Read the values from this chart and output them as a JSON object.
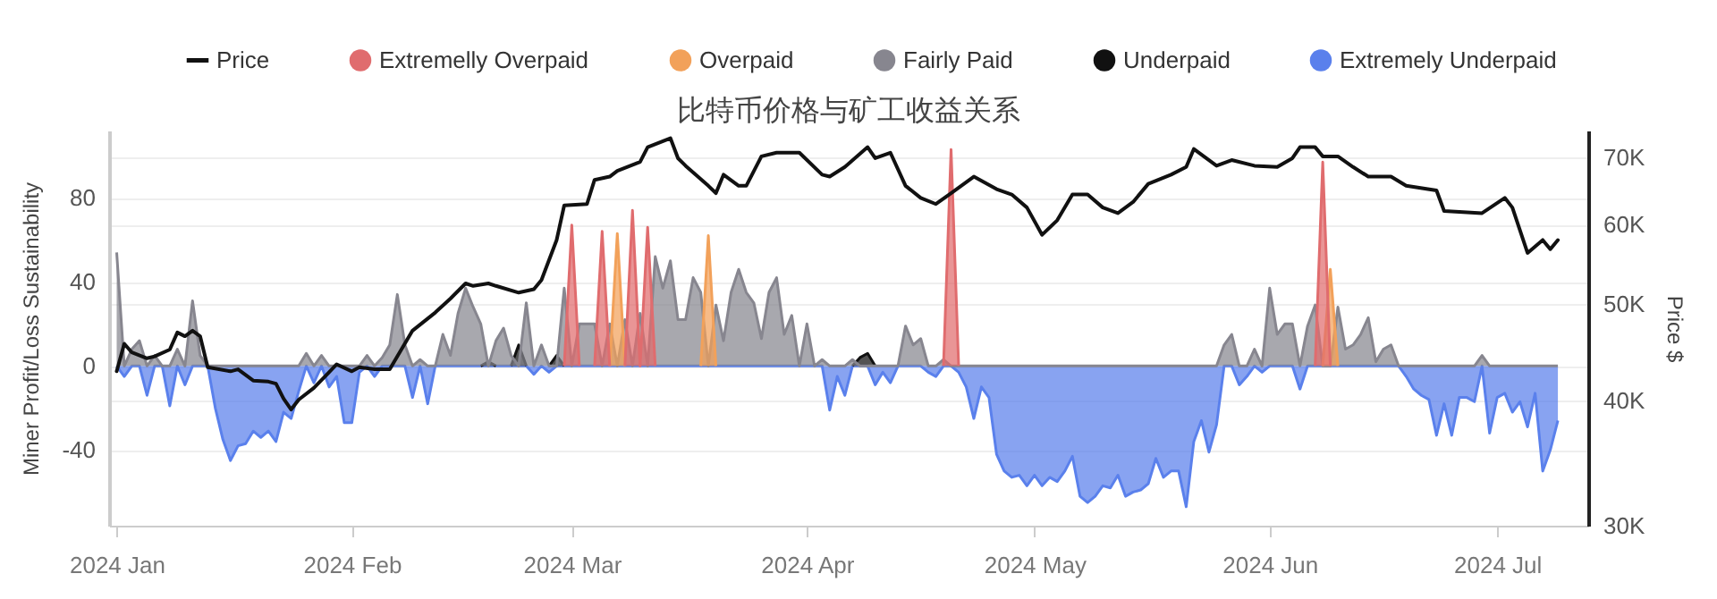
{
  "chart_data": {
    "type": "area",
    "title": "比特币价格与矿工收益关系",
    "ylabel": "Miner Profit/Loss Sustainability",
    "y2label": "Price $",
    "xlim": [
      "2023-12-31",
      "2024-07-13"
    ],
    "xticks": [
      {
        "value": "2024-01-01",
        "label": "2024 Jan"
      },
      {
        "value": "2024-02-01",
        "label": "2024 Feb"
      },
      {
        "value": "2024-03-01",
        "label": "2024 Mar"
      },
      {
        "value": "2024-04-01",
        "label": "2024 Apr"
      },
      {
        "value": "2024-05-01",
        "label": "2024 May"
      },
      {
        "value": "2024-06-01",
        "label": "2024 Jun"
      },
      {
        "value": "2024-07-01",
        "label": "2024 Jul"
      }
    ],
    "ylim": [
      -76,
      112
    ],
    "yticks": [
      -40,
      0,
      40,
      80
    ],
    "y2lim": [
      30000,
      74500
    ],
    "y2ticks": [
      {
        "value": 30000,
        "label": "30K"
      },
      {
        "value": 40000,
        "label": "40K"
      },
      {
        "value": 50000,
        "label": "50K"
      },
      {
        "value": 60000,
        "label": "60K"
      },
      {
        "value": 70000,
        "label": "70K"
      }
    ],
    "log": "y2",
    "grid": "y",
    "legend": "top",
    "x": [
      "2024-01-01",
      "2024-01-02",
      "2024-01-03",
      "2024-01-04",
      "2024-01-05",
      "2024-01-06",
      "2024-01-07",
      "2024-01-08",
      "2024-01-09",
      "2024-01-10",
      "2024-01-11",
      "2024-01-12",
      "2024-01-13",
      "2024-01-14",
      "2024-01-15",
      "2024-01-16",
      "2024-01-17",
      "2024-01-18",
      "2024-01-19",
      "2024-01-20",
      "2024-01-21",
      "2024-01-22",
      "2024-01-23",
      "2024-01-24",
      "2024-01-25",
      "2024-01-26",
      "2024-01-27",
      "2024-01-28",
      "2024-01-29",
      "2024-01-30",
      "2024-01-31",
      "2024-02-01",
      "2024-02-02",
      "2024-02-03",
      "2024-02-04",
      "2024-02-05",
      "2024-02-06",
      "2024-02-07",
      "2024-02-08",
      "2024-02-09",
      "2024-02-10",
      "2024-02-11",
      "2024-02-12",
      "2024-02-13",
      "2024-02-14",
      "2024-02-15",
      "2024-02-16",
      "2024-02-17",
      "2024-02-18",
      "2024-02-19",
      "2024-02-20",
      "2024-02-21",
      "2024-02-22",
      "2024-02-23",
      "2024-02-24",
      "2024-02-25",
      "2024-02-26",
      "2024-02-27",
      "2024-02-28",
      "2024-02-29",
      "2024-03-01",
      "2024-03-02",
      "2024-03-03",
      "2024-03-04",
      "2024-03-05",
      "2024-03-06",
      "2024-03-07",
      "2024-03-08",
      "2024-03-09",
      "2024-03-10",
      "2024-03-11",
      "2024-03-12",
      "2024-03-13",
      "2024-03-14",
      "2024-03-15",
      "2024-03-16",
      "2024-03-17",
      "2024-03-18",
      "2024-03-19",
      "2024-03-20",
      "2024-03-21",
      "2024-03-22",
      "2024-03-23",
      "2024-03-24",
      "2024-03-25",
      "2024-03-26",
      "2024-03-27",
      "2024-03-28",
      "2024-03-29",
      "2024-03-30",
      "2024-03-31",
      "2024-04-01",
      "2024-04-02",
      "2024-04-03",
      "2024-04-04",
      "2024-04-05",
      "2024-04-06",
      "2024-04-07",
      "2024-04-08",
      "2024-04-09",
      "2024-04-10",
      "2024-04-11",
      "2024-04-12",
      "2024-04-13",
      "2024-04-14",
      "2024-04-15",
      "2024-04-16",
      "2024-04-17",
      "2024-04-18",
      "2024-04-19",
      "2024-04-20",
      "2024-04-21",
      "2024-04-22",
      "2024-04-23",
      "2024-04-24",
      "2024-04-25",
      "2024-04-26",
      "2024-04-27",
      "2024-04-28",
      "2024-04-29",
      "2024-04-30",
      "2024-05-01",
      "2024-05-02",
      "2024-05-03",
      "2024-05-04",
      "2024-05-05",
      "2024-05-06",
      "2024-05-07",
      "2024-05-08",
      "2024-05-09",
      "2024-05-10",
      "2024-05-11",
      "2024-05-12",
      "2024-05-13",
      "2024-05-14",
      "2024-05-15",
      "2024-05-16",
      "2024-05-17",
      "2024-05-18",
      "2024-05-19",
      "2024-05-20",
      "2024-05-21",
      "2024-05-22",
      "2024-05-23",
      "2024-05-24",
      "2024-05-25",
      "2024-05-26",
      "2024-05-27",
      "2024-05-28",
      "2024-05-29",
      "2024-05-30",
      "2024-05-31",
      "2024-06-01",
      "2024-06-02",
      "2024-06-03",
      "2024-06-04",
      "2024-06-05",
      "2024-06-06",
      "2024-06-07",
      "2024-06-08",
      "2024-06-09",
      "2024-06-10",
      "2024-06-11",
      "2024-06-12",
      "2024-06-13",
      "2024-06-14",
      "2024-06-15",
      "2024-06-16",
      "2024-06-17",
      "2024-06-18",
      "2024-06-19",
      "2024-06-20",
      "2024-06-21",
      "2024-06-22",
      "2024-06-23",
      "2024-06-24",
      "2024-06-25",
      "2024-06-26",
      "2024-06-27",
      "2024-06-28",
      "2024-06-29",
      "2024-06-30",
      "2024-07-01",
      "2024-07-02",
      "2024-07-03",
      "2024-07-04",
      "2024-07-05",
      "2024-07-06",
      "2024-07-07",
      "2024-07-08",
      "2024-07-09"
    ],
    "series": [
      {
        "name": "Price",
        "type": "line",
        "axis": "y2",
        "color": "#111111",
        "x": [
          "2024-01-01",
          "2024-01-02",
          "2024-01-03",
          "2024-01-05",
          "2024-01-06",
          "2024-01-08",
          "2024-01-09",
          "2024-01-10",
          "2024-01-11",
          "2024-01-12",
          "2024-01-13",
          "2024-01-16",
          "2024-01-17",
          "2024-01-19",
          "2024-01-21",
          "2024-01-22",
          "2024-01-23",
          "2024-01-24",
          "2024-01-25",
          "2024-01-27",
          "2024-01-29",
          "2024-01-30",
          "2024-02-01",
          "2024-02-02",
          "2024-02-04",
          "2024-02-06",
          "2024-02-09",
          "2024-02-12",
          "2024-02-14",
          "2024-02-16",
          "2024-02-17",
          "2024-02-19",
          "2024-02-20",
          "2024-02-23",
          "2024-02-25",
          "2024-02-26",
          "2024-02-28",
          "2024-02-29",
          "2024-03-03",
          "2024-03-04",
          "2024-03-06",
          "2024-03-07",
          "2024-03-10",
          "2024-03-11",
          "2024-03-14",
          "2024-03-15",
          "2024-03-16",
          "2024-03-19",
          "2024-03-20",
          "2024-03-21",
          "2024-03-23",
          "2024-03-24",
          "2024-03-26",
          "2024-03-28",
          "2024-03-31",
          "2024-04-03",
          "2024-04-04",
          "2024-04-06",
          "2024-04-09",
          "2024-04-10",
          "2024-04-12",
          "2024-04-14",
          "2024-04-16",
          "2024-04-18",
          "2024-04-20",
          "2024-04-23",
          "2024-04-26",
          "2024-04-28",
          "2024-04-30",
          "2024-05-02",
          "2024-05-04",
          "2024-05-06",
          "2024-05-08",
          "2024-05-10",
          "2024-05-12",
          "2024-05-14",
          "2024-05-16",
          "2024-05-19",
          "2024-05-21",
          "2024-05-22",
          "2024-05-25",
          "2024-05-27",
          "2024-05-30",
          "2024-06-02",
          "2024-06-04",
          "2024-06-05",
          "2024-06-07",
          "2024-06-08",
          "2024-06-10",
          "2024-06-12",
          "2024-06-14",
          "2024-06-17",
          "2024-06-19",
          "2024-06-23",
          "2024-06-24",
          "2024-06-29",
          "2024-07-02",
          "2024-07-03",
          "2024-07-05",
          "2024-07-07",
          "2024-07-08",
          "2024-07-09"
        ],
        "values": [
          42800,
          45600,
          44700,
          44100,
          44300,
          45000,
          46800,
          46400,
          47000,
          46400,
          43200,
          42800,
          43000,
          41900,
          41800,
          41600,
          40200,
          39200,
          40100,
          41200,
          42700,
          43500,
          42800,
          43200,
          43000,
          43000,
          47000,
          49000,
          50600,
          52400,
          52100,
          52400,
          52100,
          51300,
          51700,
          52800,
          57900,
          62700,
          62900,
          66500,
          67000,
          67900,
          69300,
          71700,
          73200,
          69900,
          68700,
          65600,
          64500,
          67300,
          65600,
          65600,
          70200,
          70800,
          70800,
          67300,
          67000,
          68500,
          71700,
          69900,
          70800,
          65600,
          63800,
          62900,
          64500,
          67000,
          65100,
          64300,
          62400,
          58600,
          60600,
          64300,
          64300,
          62400,
          61600,
          63200,
          65900,
          67300,
          68500,
          71400,
          68700,
          69600,
          68700,
          68500,
          69900,
          71700,
          71700,
          70200,
          70200,
          68500,
          67000,
          67000,
          65600,
          64900,
          61900,
          61600,
          63800,
          62400,
          56200,
          57900,
          56700,
          57900
        ]
      },
      {
        "name": "Extremelly Overpaid",
        "color": "#e06c6e",
        "x": [
          "2024-02-29",
          "2024-03-01",
          "2024-03-02",
          "2024-03-03",
          "2024-03-04",
          "2024-03-05",
          "2024-03-06",
          "2024-03-07",
          "2024-03-08",
          "2024-03-09",
          "2024-03-10",
          "2024-03-11",
          "2024-03-12",
          "2024-04-01",
          "2024-04-19",
          "2024-04-20",
          "2024-04-21",
          "2024-05-01",
          "2024-06-07",
          "2024-06-08",
          "2024-06-09"
        ],
        "values": [
          0,
          67,
          0,
          null,
          0,
          64,
          0,
          null,
          0,
          74,
          0,
          66,
          0,
          null,
          0,
          103,
          0,
          null,
          0,
          97,
          0
        ]
      },
      {
        "name": "Overpaid",
        "color": "#f2a15a",
        "x": [
          "2024-03-06",
          "2024-03-07",
          "2024-03-08",
          "2024-03-09",
          "2024-03-18",
          "2024-03-19",
          "2024-03-20",
          "2024-04-01",
          "2024-06-08",
          "2024-06-09",
          "2024-06-10"
        ],
        "values": [
          0,
          63,
          0,
          null,
          0,
          62,
          0,
          null,
          0,
          46,
          0
        ]
      },
      {
        "name": "Fairly Paid",
        "color": "#87868f",
        "values": [
          54,
          0,
          8,
          12,
          0,
          5,
          0,
          0,
          8,
          0,
          31,
          5,
          0,
          0,
          0,
          0,
          0,
          0,
          0,
          0,
          0,
          0,
          0,
          0,
          0,
          6,
          0,
          5,
          0,
          0,
          0,
          0,
          0,
          5,
          0,
          4,
          10,
          34,
          10,
          0,
          3,
          0,
          0,
          15,
          5,
          25,
          37,
          28,
          20,
          0,
          12,
          18,
          5,
          0,
          30,
          0,
          10,
          0,
          0,
          37,
          0,
          20,
          20,
          20,
          0,
          20,
          0,
          22,
          0,
          25,
          0,
          52,
          37,
          50,
          22,
          22,
          42,
          35,
          0,
          29,
          12,
          35,
          46,
          35,
          30,
          13,
          35,
          42,
          15,
          24,
          0,
          20,
          0,
          3,
          0,
          0,
          0,
          3,
          0,
          0,
          0,
          0,
          0,
          0,
          19,
          10,
          13,
          0,
          0,
          3,
          0,
          0,
          0,
          0,
          0,
          0,
          0,
          0,
          0,
          0,
          0,
          0,
          0,
          0,
          0,
          0,
          0,
          0,
          0,
          0,
          0,
          0,
          0,
          0,
          0,
          0,
          0,
          0,
          0,
          0,
          0,
          0,
          0,
          0,
          0,
          0,
          10,
          15,
          0,
          0,
          8,
          0,
          37,
          15,
          20,
          20,
          0,
          19,
          29,
          0,
          0,
          28,
          8,
          10,
          15,
          23,
          2,
          8,
          10,
          0,
          0,
          0,
          0,
          0,
          0,
          0,
          0,
          0,
          0,
          0,
          5,
          0,
          0,
          0,
          0,
          0,
          0,
          0,
          0,
          0,
          0
        ]
      },
      {
        "name": "Underpaid",
        "color": "#111111",
        "x": [
          "2024-02-18",
          "2024-02-19",
          "2024-02-20",
          "2024-02-21",
          "2024-02-22",
          "2024-02-23",
          "2024-02-24",
          "2024-02-25",
          "2024-02-27",
          "2024-02-28",
          "2024-02-29",
          "2024-03-15",
          "2024-04-07",
          "2024-04-08",
          "2024-04-09",
          "2024-04-10"
        ],
        "values": [
          0,
          2,
          0,
          null,
          0,
          10,
          0,
          null,
          0,
          5,
          0,
          null,
          0,
          4,
          6,
          0
        ]
      },
      {
        "name": "Extremely Underpaid",
        "color": "#5a80ec",
        "values": [
          0,
          -5,
          0,
          0,
          -14,
          0,
          0,
          -19,
          0,
          -9,
          0,
          0,
          0,
          -20,
          -35,
          -45,
          -38,
          -37,
          -31,
          -34,
          -31,
          -36,
          -22,
          -25,
          -12,
          0,
          -8,
          0,
          -10,
          -5,
          -27,
          -27,
          -3,
          0,
          -5,
          0,
          0,
          0,
          0,
          -15,
          0,
          -18,
          0,
          0,
          0,
          0,
          0,
          0,
          0,
          0,
          0,
          0,
          0,
          0,
          0,
          -4,
          0,
          -3,
          0,
          0,
          0,
          0,
          0,
          0,
          0,
          0,
          0,
          0,
          0,
          0,
          0,
          0,
          0,
          0,
          0,
          0,
          0,
          0,
          0,
          0,
          0,
          0,
          0,
          0,
          0,
          0,
          0,
          0,
          0,
          0,
          0,
          0,
          0,
          0,
          -21,
          -5,
          -14,
          0,
          0,
          0,
          -9,
          -3,
          -8,
          0,
          0,
          0,
          0,
          -3,
          -5,
          0,
          0,
          -3,
          -10,
          -25,
          -10,
          -15,
          -42,
          -50,
          -53,
          -52,
          -57,
          -52,
          -57,
          -53,
          -55,
          -50,
          -43,
          -62,
          -65,
          -62,
          -57,
          -58,
          -52,
          -62,
          -60,
          -59,
          -56,
          -44,
          -53,
          -50,
          -50,
          -67,
          -36,
          -26,
          -41,
          -28,
          0,
          0,
          -9,
          -5,
          0,
          -3,
          0,
          0,
          0,
          0,
          -11,
          0,
          0,
          0,
          0,
          0,
          0,
          0,
          0,
          0,
          0,
          0,
          0,
          0,
          -5,
          -11,
          -14,
          -16,
          -33,
          -18,
          -33,
          -15,
          -15,
          -17,
          0,
          -32,
          -15,
          -13,
          -22,
          -17,
          -29,
          -13,
          -50,
          -40,
          -26
        ]
      }
    ]
  }
}
